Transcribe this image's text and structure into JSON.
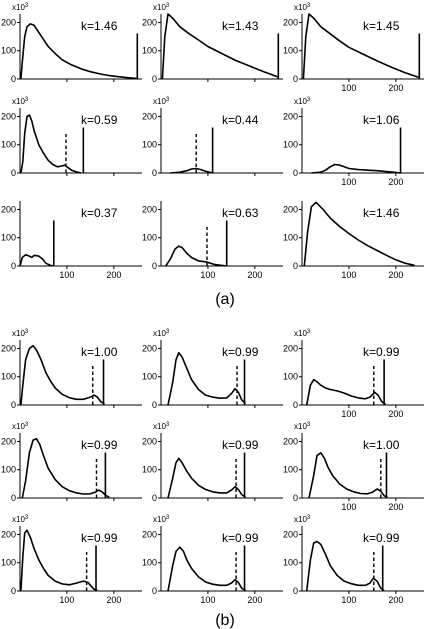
{
  "figure": {
    "groups": [
      {
        "label": "(a)",
        "panels": [
          {
            "k": "k=1.46",
            "scale": "x10",
            "scale_exp": "3",
            "show_x_ticks": false,
            "x": [
              2,
              5,
              10,
              15,
              22,
              30,
              40,
              50,
              60,
              75,
              90,
              110,
              130,
              150,
              170,
              190,
              210,
              235,
              248
            ],
            "y": [
              0,
              60,
              150,
              185,
              195,
              190,
              165,
              140,
              115,
              90,
              68,
              50,
              36,
              26,
              18,
              12,
              8,
              4,
              2
            ],
            "solid": 250,
            "dashed": null
          },
          {
            "k": "k=1.43",
            "scale": "x10",
            "scale_exp": "3",
            "show_x_ticks": false,
            "x": [
              3,
              8,
              15,
              25,
              40,
              60,
              80,
              100,
              130,
              160,
              190,
              220,
              248
            ],
            "y": [
              0,
              150,
              230,
              215,
              185,
              160,
              138,
              115,
              90,
              65,
              45,
              25,
              8
            ],
            "solid": 250,
            "dashed": null
          },
          {
            "k": "k=1.45",
            "scale": "x10",
            "scale_exp": "3",
            "show_x_ticks": true,
            "x": [
              3,
              8,
              15,
              25,
              40,
              60,
              80,
              100,
              130,
              160,
              190,
              220,
              248
            ],
            "y": [
              0,
              150,
              230,
              215,
              185,
              160,
              135,
              112,
              88,
              64,
              42,
              22,
              6
            ],
            "solid": 250,
            "dashed": null
          },
          {
            "k": "k=0.59",
            "scale": "x10",
            "scale_exp": "3",
            "show_x_ticks": false,
            "x": [
              2,
              6,
              10,
              15,
              20,
              25,
              30,
              40,
              50,
              60,
              70,
              80,
              90,
              95,
              100,
              110,
              120,
              130
            ],
            "y": [
              0,
              40,
              140,
              200,
              205,
              185,
              150,
              100,
              70,
              45,
              30,
              22,
              25,
              28,
              22,
              10,
              4,
              0
            ],
            "solid": 135,
            "dashed": 98
          },
          {
            "k": "k=0.44",
            "scale": "x10",
            "scale_exp": "3",
            "show_x_ticks": false,
            "x": [
              20,
              40,
              55,
              65,
              75,
              85,
              95,
              105,
              112
            ],
            "y": [
              0,
              3,
              8,
              14,
              16,
              12,
              6,
              2,
              0
            ],
            "solid": 110,
            "dashed": 75
          },
          {
            "k": "k=1.06",
            "scale": "x10",
            "scale_exp": "3",
            "show_x_ticks": true,
            "x": [
              20,
              40,
              50,
              60,
              70,
              80,
              90,
              100,
              120,
              140,
              160,
              180,
              200,
              210
            ],
            "y": [
              0,
              3,
              10,
              22,
              30,
              28,
              22,
              16,
              12,
              10,
              8,
              5,
              2,
              0
            ],
            "solid": 210,
            "dashed": null
          },
          {
            "k": "k=0.37",
            "scale": "",
            "scale_exp": "",
            "show_x_ticks": true,
            "x": [
              0,
              5,
              12,
              20,
              25,
              30,
              40,
              48,
              55,
              65,
              72
            ],
            "y": [
              0,
              30,
              40,
              35,
              30,
              38,
              35,
              25,
              10,
              2,
              0
            ],
            "solid": 72,
            "dashed": null
          },
          {
            "k": "k=0.63",
            "scale": "",
            "scale_exp": "",
            "show_x_ticks": true,
            "x": [
              10,
              20,
              30,
              38,
              45,
              55,
              65,
              80,
              95,
              105,
              115,
              130,
              140
            ],
            "y": [
              0,
              25,
              60,
              70,
              65,
              45,
              30,
              18,
              15,
              10,
              5,
              2,
              0
            ],
            "solid": 140,
            "dashed": 98
          },
          {
            "k": "k=1.46",
            "scale": "",
            "scale_exp": "",
            "show_x_ticks": true,
            "x": [
              5,
              12,
              20,
              30,
              45,
              60,
              80,
              100,
              120,
              140,
              160,
              180,
              200,
              220,
              240
            ],
            "y": [
              0,
              120,
              210,
              225,
              200,
              170,
              140,
              115,
              92,
              72,
              55,
              38,
              22,
              10,
              2
            ],
            "solid": null,
            "dashed": null
          }
        ]
      },
      {
        "label": "(b)",
        "panels": [
          {
            "k": "k=1.00",
            "scale": "x10",
            "scale_exp": "3",
            "show_x_ticks": false,
            "x": [
              2,
              6,
              12,
              20,
              28,
              35,
              45,
              55,
              65,
              75,
              90,
              105,
              120,
              135,
              150,
              158,
              165,
              172,
              180
            ],
            "y": [
              0,
              70,
              160,
              200,
              210,
              195,
              160,
              115,
              85,
              60,
              38,
              26,
              20,
              20,
              28,
              35,
              28,
              12,
              4
            ],
            "solid": 178,
            "dashed": 155
          },
          {
            "k": "k=0.99",
            "scale": "x10",
            "scale_exp": "3",
            "show_x_ticks": false,
            "x": [
              15,
              25,
              32,
              38,
              45,
              55,
              65,
              80,
              95,
              110,
              125,
              140,
              150,
              158,
              165,
              172,
              180
            ],
            "y": [
              0,
              80,
              160,
              185,
              170,
              130,
              90,
              55,
              35,
              28,
              24,
              25,
              40,
              58,
              45,
              18,
              5
            ],
            "solid": 178,
            "dashed": 162
          },
          {
            "k": "k=0.99",
            "scale": "x10",
            "scale_exp": "3",
            "show_x_ticks": true,
            "x": [
              10,
              18,
              25,
              32,
              40,
              50,
              60,
              75,
              90,
              105,
              120,
              135,
              145,
              155,
              162,
              170,
              178
            ],
            "y": [
              0,
              70,
              90,
              82,
              70,
              60,
              55,
              50,
              42,
              32,
              25,
              22,
              28,
              45,
              35,
              12,
              2
            ],
            "solid": 175,
            "dashed": 153
          },
          {
            "k": "k=0.99",
            "scale": "x10",
            "scale_exp": "3",
            "show_x_ticks": false,
            "x": [
              5,
              12,
              20,
              28,
              35,
              42,
              50,
              60,
              75,
              90,
              105,
              120,
              135,
              150,
              160,
              168,
              175,
              182,
              190
            ],
            "y": [
              0,
              60,
              160,
              205,
              210,
              190,
              150,
              105,
              65,
              40,
              26,
              18,
              14,
              15,
              20,
              28,
              22,
              10,
              3
            ],
            "solid": 182,
            "dashed": 163
          },
          {
            "k": "k=0.99",
            "scale": "x10",
            "scale_exp": "3",
            "show_x_ticks": false,
            "x": [
              15,
              25,
              32,
              38,
              45,
              55,
              65,
              80,
              95,
              110,
              125,
              140,
              150,
              158,
              165,
              172,
              180
            ],
            "y": [
              0,
              70,
              125,
              140,
              125,
              95,
              70,
              45,
              30,
              22,
              18,
              18,
              28,
              40,
              30,
              12,
              3
            ],
            "solid": 178,
            "dashed": 160
          },
          {
            "k": "k=1.00",
            "scale": "x10",
            "scale_exp": "3",
            "show_x_ticks": true,
            "x": [
              15,
              25,
              32,
              40,
              48,
              55,
              65,
              80,
              95,
              110,
              125,
              140,
              150,
              160,
              168,
              175,
              182
            ],
            "y": [
              0,
              80,
              150,
              160,
              140,
              110,
              80,
              50,
              32,
              22,
              16,
              15,
              20,
              32,
              24,
              8,
              2
            ],
            "solid": 180,
            "dashed": 168
          },
          {
            "k": "k=0.99",
            "scale": "x10",
            "scale_exp": "3",
            "show_x_ticks": true,
            "x": [
              2,
              6,
              10,
              15,
              22,
              30,
              40,
              50,
              60,
              75,
              90,
              105,
              120,
              135,
              145,
              150,
              158,
              165
            ],
            "y": [
              0,
              120,
              205,
              215,
              190,
              150,
              110,
              80,
              55,
              35,
              25,
              22,
              28,
              35,
              30,
              20,
              6,
              2
            ],
            "solid": 162,
            "dashed": 142
          },
          {
            "k": "k=0.99",
            "scale": "x10",
            "scale_exp": "3",
            "show_x_ticks": true,
            "x": [
              15,
              25,
              32,
              40,
              48,
              55,
              65,
              80,
              95,
              110,
              125,
              140,
              150,
              158,
              165,
              172,
              180
            ],
            "y": [
              0,
              90,
              140,
              155,
              140,
              110,
              80,
              50,
              32,
              24,
              20,
              20,
              28,
              40,
              30,
              10,
              2
            ],
            "solid": 178,
            "dashed": 160
          },
          {
            "k": "k=0.99",
            "scale": "x10",
            "scale_exp": "3",
            "show_x_ticks": true,
            "x": [
              10,
              18,
              25,
              32,
              40,
              50,
              60,
              75,
              90,
              105,
              120,
              135,
              145,
              152,
              160,
              168,
              175
            ],
            "y": [
              0,
              110,
              170,
              175,
              165,
              130,
              90,
              55,
              35,
              26,
              20,
              20,
              28,
              45,
              35,
              10,
              2
            ],
            "solid": 172,
            "dashed": 153
          }
        ]
      }
    ]
  },
  "chart_data": {
    "type": "line",
    "title": "",
    "xlabel": "",
    "ylabel": "",
    "xlim": [
      0,
      260
    ],
    "ylim": [
      0,
      230
    ],
    "x_ticks": [
      "100",
      "200"
    ],
    "y_ticks": [
      "0",
      "100",
      "200"
    ],
    "grid": false,
    "layout": "two 3x3 groups of histogram panels labeled (a) and (b)"
  }
}
